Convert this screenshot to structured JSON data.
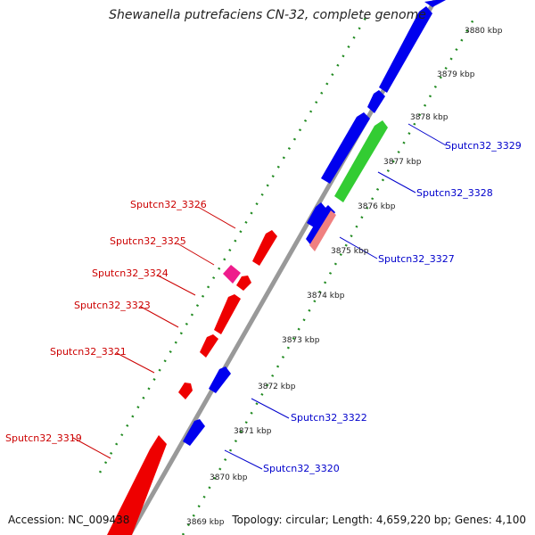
{
  "title": "Shewanella putrefaciens CN-32, complete genome",
  "accession": "Accession: NC_009438",
  "topology": "Topology: circular; Length: 4,659,220 bp; Genes: 4,100",
  "colors": {
    "backbone": "#999999",
    "forward_gene": "#0000ee",
    "reverse_gene": "#ee0000",
    "pink_gene": "#ee1c8c",
    "green_gene": "#33cc33",
    "light_red_gene": "#f08080",
    "dotted_track": "#228b22",
    "label_reverse": "#cc0000",
    "label_forward": "#0000cc"
  },
  "kbp_ticks": [
    "3869 kbp",
    "3870 kbp",
    "3871 kbp",
    "3872 kbp",
    "3873 kbp",
    "3874 kbp",
    "3875 kbp",
    "3876 kbp",
    "3877 kbp",
    "3878 kbp",
    "3879 kbp",
    "3880 kbp"
  ],
  "reverse_labels": [
    "Sputcn32_3319",
    "Sputcn32_3321",
    "Sputcn32_3323",
    "Sputcn32_3324",
    "Sputcn32_3325",
    "Sputcn32_3326"
  ],
  "forward_labels": [
    "Sputcn32_3320",
    "Sputcn32_3322",
    "Sputcn32_3327",
    "Sputcn32_3328",
    "Sputcn32_3329"
  ]
}
